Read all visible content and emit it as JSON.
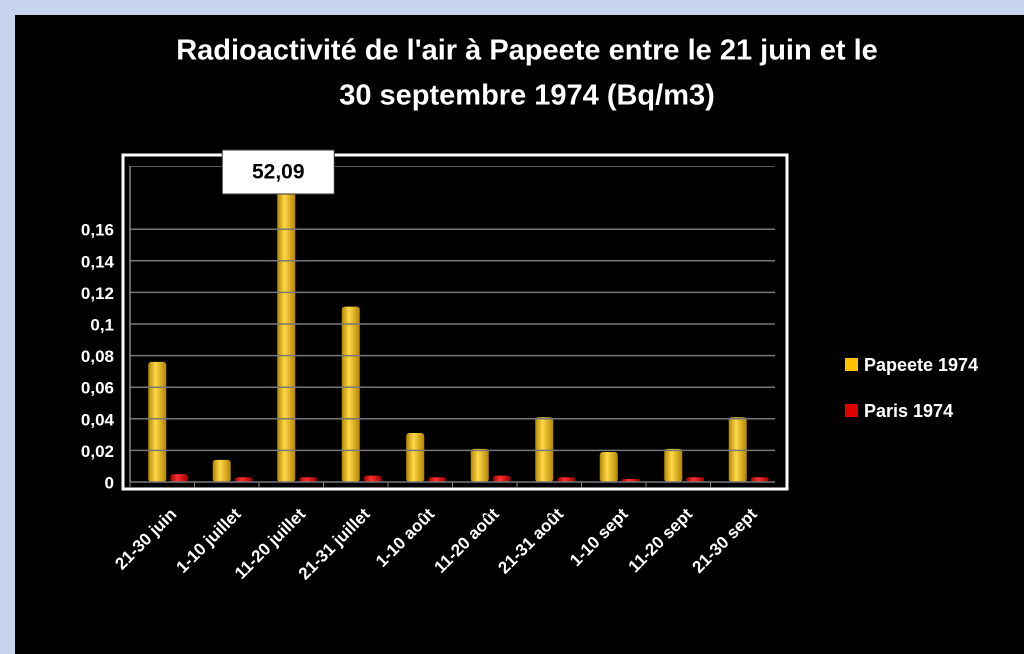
{
  "chart_data": {
    "type": "bar",
    "title": "Radioactivité de l'air à Papeete entre le 21 juin et le",
    "subtitle": "30 septembre 1974 (Bq/m3)",
    "categories": [
      "21-30 juin",
      "1-10 juillet",
      "11-20 juillet",
      "21-31 juillet",
      "1-10 août",
      "11-20 août",
      "21-31 août",
      "1-10 sept",
      "11-20 sept",
      "21-30 sept"
    ],
    "series": [
      {
        "name": "Papeete 1974",
        "color": "#ffc000",
        "values": [
          0.076,
          0.014,
          52.09,
          0.111,
          0.031,
          0.021,
          0.041,
          0.019,
          0.021,
          0.041
        ],
        "value_labels": [
          null,
          null,
          "52,09",
          null,
          null,
          null,
          null,
          null,
          null,
          null
        ]
      },
      {
        "name": "Paris 1974",
        "color": "#e00000",
        "values": [
          0.005,
          0.003,
          0.003,
          0.004,
          0.003,
          0.004,
          0.003,
          0.002,
          0.003,
          0.003
        ]
      }
    ],
    "ylim": [
      0,
      0.2
    ],
    "yticks": [
      0,
      {
        "value": 0.02,
        "label": "0,02"
      },
      {
        "value": 0.04,
        "label": "0,04"
      },
      {
        "value": 0.06,
        "label": "0,06"
      },
      {
        "value": 0.08,
        "label": "0,08"
      },
      {
        "value": 0.1,
        "label": "0,1"
      },
      {
        "value": 0.12,
        "label": "0,12"
      },
      {
        "value": 0.14,
        "label": "0,14"
      },
      {
        "value": 0.16,
        "label": "0,16"
      }
    ],
    "grid": true,
    "legend": "right"
  }
}
